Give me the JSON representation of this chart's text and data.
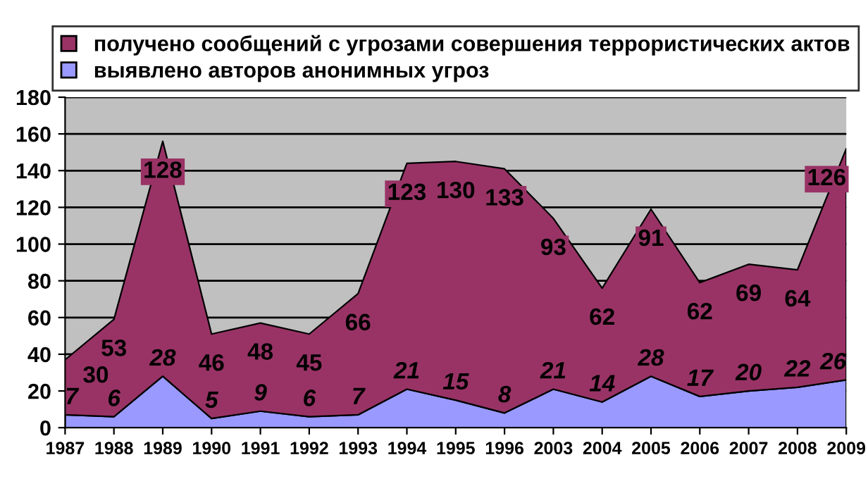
{
  "chart_data": {
    "type": "area",
    "stacked": true,
    "categories": [
      "1987",
      "1988",
      "1989",
      "1990",
      "1991",
      "1992",
      "1993",
      "1994",
      "1995",
      "1996",
      "2003",
      "2004",
      "2005",
      "2006",
      "2007",
      "2008",
      "2009"
    ],
    "series": [
      {
        "name": "выявлено авторов анонимных угроз",
        "color": "#9999ff",
        "values": [
          7,
          6,
          28,
          5,
          9,
          6,
          7,
          21,
          15,
          8,
          21,
          14,
          28,
          17,
          20,
          22,
          26
        ]
      },
      {
        "name": "получено сообщений с угрозами совершения террористических актов",
        "color": "#993366",
        "values": [
          30,
          53,
          128,
          46,
          48,
          45,
          66,
          123,
          130,
          133,
          93,
          62,
          91,
          62,
          69,
          64,
          126
        ]
      }
    ],
    "ylim": [
      0,
      180
    ],
    "yticks": [
      0,
      20,
      40,
      60,
      80,
      100,
      120,
      140,
      160,
      180
    ],
    "grid": "y",
    "legend": "top",
    "data_labels": true
  }
}
